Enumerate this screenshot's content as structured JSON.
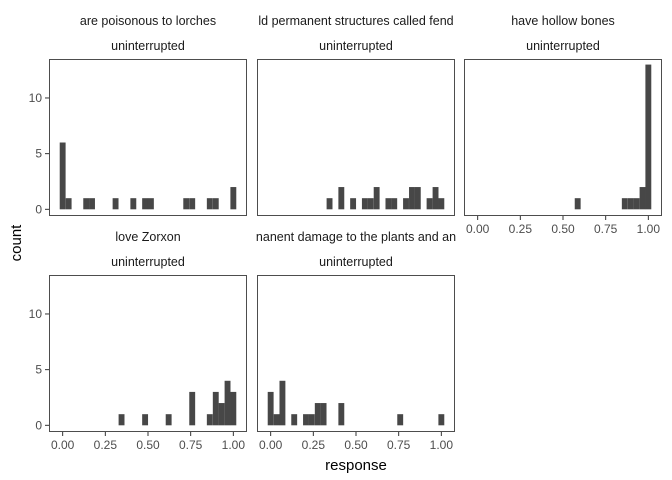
{
  "chart_data": {
    "type": "bar",
    "subtype": "faceted-histogram",
    "xlabel": "response",
    "ylabel": "count",
    "xlim": [
      -0.08,
      1.08
    ],
    "ylim": [
      -0.6,
      13.5
    ],
    "grid": false,
    "bins": 30,
    "y_ticks": [
      "0",
      "5",
      "10"
    ],
    "x_ticks": [
      "0.00",
      "0.25",
      "0.50",
      "0.75",
      "1.00"
    ],
    "colors": {
      "bar": "#474747",
      "panel_border": "#4d4d4d",
      "strip_text": "#1a1a1a",
      "tick_text": "#4d4d4d"
    },
    "facets": [
      {
        "title": "are poisonous to lorches",
        "subtitle": "uninterrupted",
        "bars": [
          {
            "x": 0.0,
            "count": 6
          },
          {
            "x": 0.035,
            "count": 1
          },
          {
            "x": 0.138,
            "count": 1
          },
          {
            "x": 0.172,
            "count": 1
          },
          {
            "x": 0.31,
            "count": 1
          },
          {
            "x": 0.414,
            "count": 1
          },
          {
            "x": 0.483,
            "count": 1
          },
          {
            "x": 0.517,
            "count": 1
          },
          {
            "x": 0.724,
            "count": 1
          },
          {
            "x": 0.759,
            "count": 1
          },
          {
            "x": 0.862,
            "count": 1
          },
          {
            "x": 0.897,
            "count": 1
          },
          {
            "x": 1.0,
            "count": 2
          }
        ]
      },
      {
        "title": "ld permanent structures called fend",
        "subtitle": "uninterrupted",
        "bars": [
          {
            "x": 0.345,
            "count": 1
          },
          {
            "x": 0.414,
            "count": 2
          },
          {
            "x": 0.483,
            "count": 1
          },
          {
            "x": 0.552,
            "count": 1
          },
          {
            "x": 0.586,
            "count": 1
          },
          {
            "x": 0.621,
            "count": 2
          },
          {
            "x": 0.69,
            "count": 1
          },
          {
            "x": 0.724,
            "count": 1
          },
          {
            "x": 0.793,
            "count": 1
          },
          {
            "x": 0.828,
            "count": 2
          },
          {
            "x": 0.862,
            "count": 2
          },
          {
            "x": 0.931,
            "count": 1
          },
          {
            "x": 0.966,
            "count": 2
          },
          {
            "x": 1.0,
            "count": 1
          }
        ]
      },
      {
        "title": "have hollow bones",
        "subtitle": "uninterrupted",
        "bars": [
          {
            "x": 0.586,
            "count": 1
          },
          {
            "x": 0.862,
            "count": 1
          },
          {
            "x": 0.897,
            "count": 1
          },
          {
            "x": 0.931,
            "count": 1
          },
          {
            "x": 0.966,
            "count": 2
          },
          {
            "x": 1.0,
            "count": 13
          }
        ]
      },
      {
        "title": "love Zorxon",
        "subtitle": "uninterrupted",
        "bars": [
          {
            "x": 0.345,
            "count": 1
          },
          {
            "x": 0.483,
            "count": 1
          },
          {
            "x": 0.621,
            "count": 1
          },
          {
            "x": 0.759,
            "count": 3
          },
          {
            "x": 0.862,
            "count": 1
          },
          {
            "x": 0.897,
            "count": 3
          },
          {
            "x": 0.931,
            "count": 2
          },
          {
            "x": 0.966,
            "count": 4
          },
          {
            "x": 1.0,
            "count": 3
          }
        ]
      },
      {
        "title": "nanent damage to the plants and an",
        "subtitle": "uninterrupted",
        "bars": [
          {
            "x": 0.0,
            "count": 3
          },
          {
            "x": 0.035,
            "count": 1
          },
          {
            "x": 0.069,
            "count": 4
          },
          {
            "x": 0.138,
            "count": 1
          },
          {
            "x": 0.207,
            "count": 1
          },
          {
            "x": 0.241,
            "count": 1
          },
          {
            "x": 0.276,
            "count": 2
          },
          {
            "x": 0.31,
            "count": 2
          },
          {
            "x": 0.414,
            "count": 2
          },
          {
            "x": 0.759,
            "count": 1
          },
          {
            "x": 1.0,
            "count": 1
          }
        ]
      }
    ]
  }
}
